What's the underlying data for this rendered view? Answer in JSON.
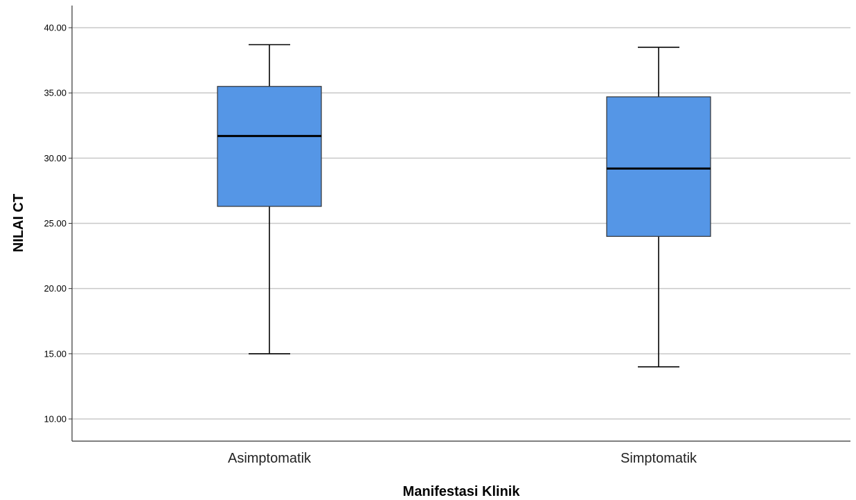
{
  "chart_data": {
    "type": "boxplot",
    "title": "",
    "xlabel": "Manifestasi Klinik",
    "ylabel": "NILAI CT",
    "ylim": [
      8.3,
      41.7
    ],
    "yticks": [
      10,
      15,
      20,
      25,
      30,
      35,
      40
    ],
    "ytick_labels": [
      "10.00",
      "15.00",
      "20.00",
      "25.00",
      "30.00",
      "35.00",
      "40.00"
    ],
    "grid": true,
    "box_color": "#5596e6",
    "categories": [
      "Asimptomatik",
      "Simptomatik"
    ],
    "boxes": [
      {
        "category": "Asimptomatik",
        "min": 15.0,
        "q1": 26.3,
        "median": 31.7,
        "q3": 35.5,
        "max": 38.7
      },
      {
        "category": "Simptomatik",
        "min": 14.0,
        "q1": 24.0,
        "median": 29.2,
        "q3": 34.7,
        "max": 38.5
      }
    ]
  }
}
